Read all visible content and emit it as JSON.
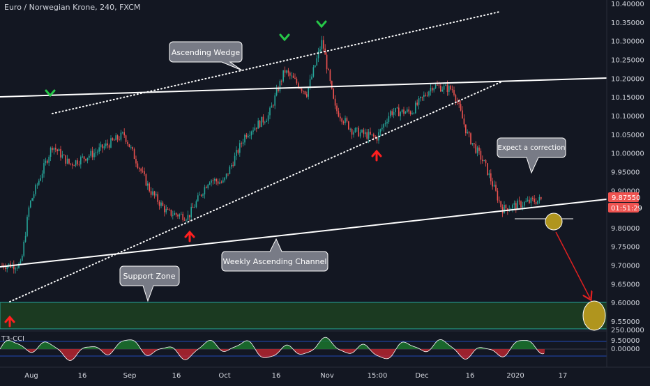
{
  "title": "Euro / Norwegian Krone, 240, FXCM",
  "indicator_label": "T3-CCI",
  "price_tag": "9.87550",
  "countdown_tag": "01:51:29",
  "colors": {
    "background": "#131722",
    "bull": "#26a69a",
    "bear": "#ef5350",
    "price_tag": "#ef5350",
    "countdown_tag": "#ef5350",
    "support_fill": "#1b3a21",
    "support_border": "#26a69a",
    "target_circle": "#b0951e",
    "arrow_up": "#ff1f1f",
    "arrow_down": "#26c848",
    "projection_arrow": "#e02020",
    "osc_positive": "#1b7a2e",
    "osc_negative": "#c0252f",
    "callout_fill": "#787b86"
  },
  "annotations": [
    {
      "text": "Ascending Wedge"
    },
    {
      "text": "Weekly Ascending Channel"
    },
    {
      "text": "Support Zone"
    },
    {
      "text": "Expect a correction"
    }
  ],
  "chart_data": {
    "type": "candlestick",
    "title": "Euro / Norwegian Krone, 240, FXCM",
    "x_tick_labels": [
      "Aug",
      "16",
      "Sep",
      "16",
      "Oct",
      "16",
      "Nov",
      "15:00",
      "Dec",
      "16",
      "2020",
      "17"
    ],
    "y_tick_labels": [
      "10.40000",
      "10.35000",
      "10.30000",
      "10.25000",
      "10.20000",
      "10.15000",
      "10.10000",
      "10.05000",
      "10.00000",
      "9.95000",
      "9.90000",
      "9.85000",
      "9.80000",
      "9.75000",
      "9.70000",
      "9.65000",
      "9.60000",
      "9.55000",
      "9.50000"
    ],
    "ylim": [
      9.5,
      10.4
    ],
    "last_price": 9.8755,
    "price_path_approx": [
      {
        "x": "Aug",
        "y": 9.7
      },
      {
        "x": "early Aug",
        "y": 10.02
      },
      {
        "x": "mid Aug",
        "y": 9.97
      },
      {
        "x": "late Aug",
        "y": 10.02
      },
      {
        "x": "Sep",
        "y": 10.05
      },
      {
        "x": "mid Sep",
        "y": 9.85
      },
      {
        "x": "late Sep",
        "y": 9.93
      },
      {
        "x": "Oct",
        "y": 10.02
      },
      {
        "x": "mid Oct",
        "y": 10.22
      },
      {
        "x": "late Oct",
        "y": 10.3
      },
      {
        "x": "Nov",
        "y": 10.12
      },
      {
        "x": "mid Nov",
        "y": 10.04
      },
      {
        "x": "late Nov",
        "y": 10.13
      },
      {
        "x": "Dec",
        "y": 10.18
      },
      {
        "x": "mid Dec",
        "y": 9.95
      },
      {
        "x": "late Dec",
        "y": 9.84
      },
      {
        "x": "2020",
        "y": 9.86
      },
      {
        "x": "early Jan",
        "y": 9.8755
      }
    ],
    "lines": [
      {
        "name": "Weekly Ascending Channel (upper)",
        "style": "solid",
        "from": {
          "x": "Jul",
          "y": 10.14
        },
        "to": {
          "x": "Jan",
          "y": 10.19
        }
      },
      {
        "name": "Weekly Ascending Channel (lower)",
        "style": "solid",
        "from": {
          "x": "Jul",
          "y": 9.7
        },
        "to": {
          "x": "Jan",
          "y": 9.88
        }
      },
      {
        "name": "Ascending Wedge (upper)",
        "style": "dotted",
        "from": {
          "x": "early Aug",
          "y": 10.1
        },
        "to": {
          "x": "Dec",
          "y": 10.37
        }
      },
      {
        "name": "Ascending Wedge (lower)",
        "style": "dotted",
        "from": {
          "x": "Jul",
          "y": 9.59
        },
        "to": {
          "x": "Dec",
          "y": 10.18
        }
      }
    ],
    "support_zone": {
      "y_from": 9.52,
      "y_to": 9.595
    },
    "indicator": {
      "name": "T3-CCI",
      "y_tick_labels": [
        "250.0000",
        "0.00000"
      ]
    }
  }
}
